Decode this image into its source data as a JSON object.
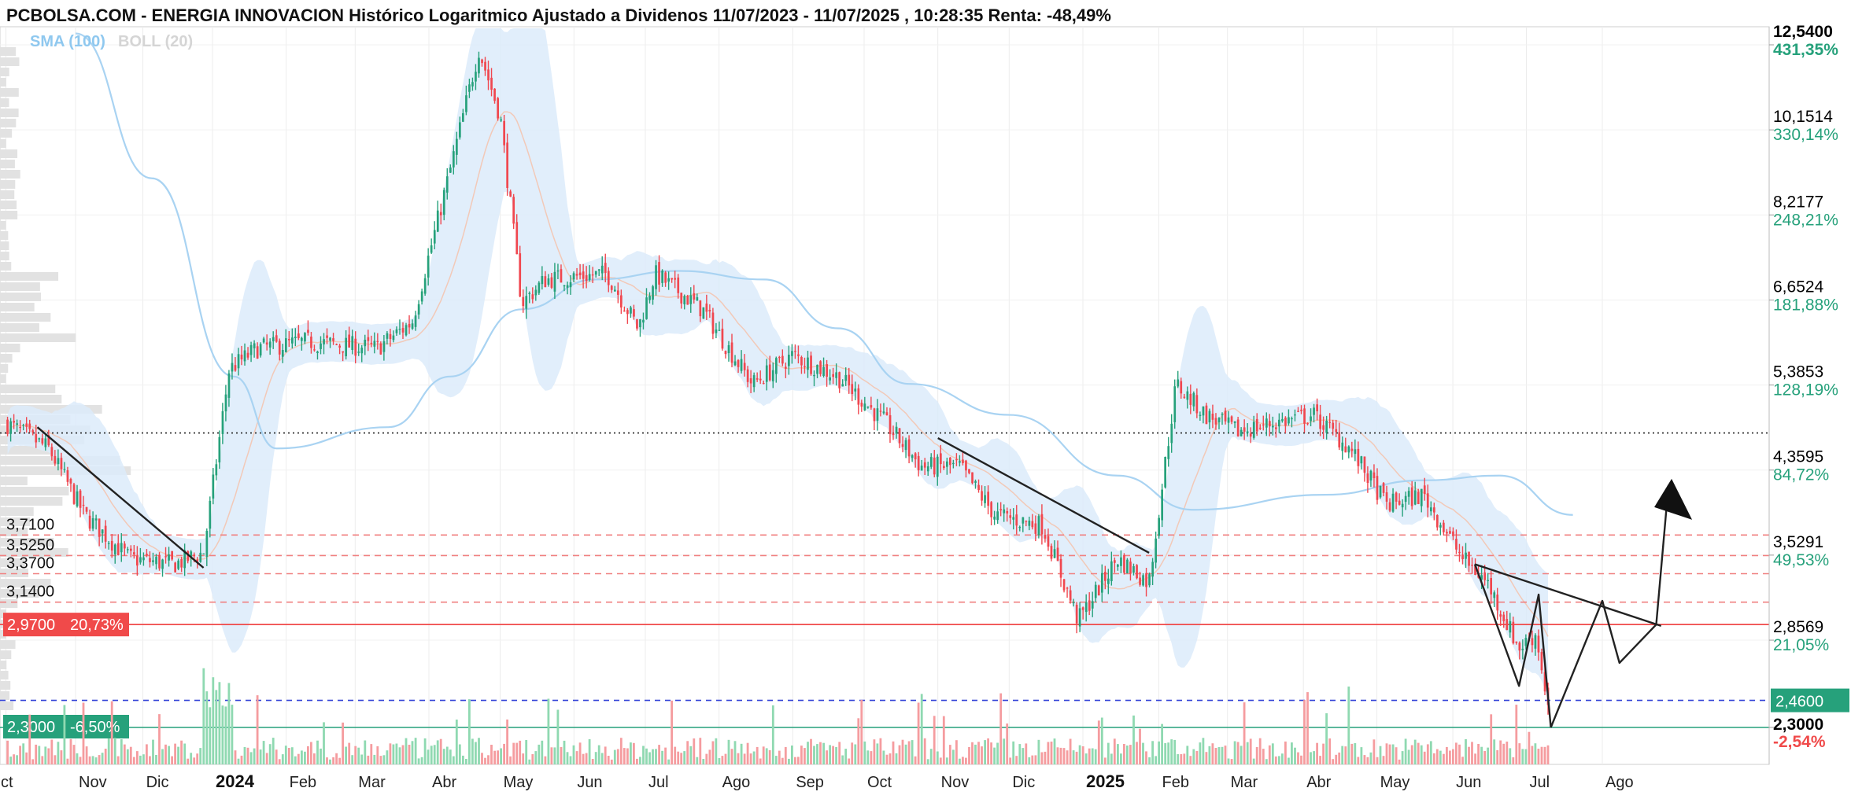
{
  "colors": {
    "up": "#26a17b",
    "down": "#f0474f",
    "volume_up": "#8fd9b1",
    "volume_down": "#f59c9f",
    "bollinger_fill": "#dcebfa",
    "sma": "#a9d3f2",
    "boll_mid": "#f2c9b8",
    "level_dash": "#f08080",
    "support": "#f04a4a",
    "blue_dash": "#2f3fd6",
    "green_line": "#26a17b",
    "pattern": "#222222"
  },
  "chart_data": {
    "type": "candlestick",
    "title": "PCBOLSA.COM - ENERGIA INNOVACION Histórico Logaritmico Ajustado a Dividenos 11/07/2023 - 11/07/2025 , 10:28:35 Renta: -48,49%",
    "legend": [
      {
        "label": "SMA (100)",
        "color": "#7ec0ee"
      },
      {
        "label": "BOLL (20)",
        "color": "#d7d7d7"
      }
    ],
    "y_scale": "log",
    "ylim": [
      2.2,
      12.9
    ],
    "y_ticks": [
      {
        "price": "12,5400",
        "pct": "431,35%",
        "value": 12.54
      },
      {
        "price": "10,1514",
        "pct": "330,14%",
        "value": 10.1514
      },
      {
        "price": "8,2177",
        "pct": "248,21%",
        "value": 8.2177
      },
      {
        "price": "6,6524",
        "pct": "181,88%",
        "value": 6.6524
      },
      {
        "price": "5,3853",
        "pct": "128,19%",
        "value": 5.3853
      },
      {
        "price": "4,3595",
        "pct": "84,72%",
        "value": 4.3595
      },
      {
        "price": "3,5291",
        "pct": "49,53%",
        "value": 3.5291
      },
      {
        "price": "2,8569",
        "pct": "21,05%",
        "value": 2.8569
      },
      {
        "price": "2,3000",
        "pct": "-2,54%",
        "value": 2.3
      }
    ],
    "x_labels": [
      {
        "label": "ct",
        "date": "2023-10-01"
      },
      {
        "label": "Nov",
        "date": "2023-11-01"
      },
      {
        "label": "Dic",
        "date": "2023-12-01"
      },
      {
        "label": "2024",
        "date": "2024-01-01",
        "bold": true
      },
      {
        "label": "Feb",
        "date": "2024-02-01"
      },
      {
        "label": "Mar",
        "date": "2024-03-01"
      },
      {
        "label": "Abr",
        "date": "2024-04-01"
      },
      {
        "label": "May",
        "date": "2024-05-01"
      },
      {
        "label": "Jun",
        "date": "2024-06-01"
      },
      {
        "label": "Jul",
        "date": "2024-07-01"
      },
      {
        "label": "Ago",
        "date": "2024-08-01"
      },
      {
        "label": "Sep",
        "date": "2024-09-01"
      },
      {
        "label": "Oct",
        "date": "2024-10-01"
      },
      {
        "label": "Nov",
        "date": "2024-11-01"
      },
      {
        "label": "Dic",
        "date": "2024-12-01"
      },
      {
        "label": "2025",
        "date": "2025-01-01",
        "bold": true
      },
      {
        "label": "Feb",
        "date": "2025-02-01"
      },
      {
        "label": "Mar",
        "date": "2025-03-01"
      },
      {
        "label": "Abr",
        "date": "2025-04-01"
      },
      {
        "label": "May",
        "date": "2025-05-01"
      },
      {
        "label": "Jun",
        "date": "2025-06-01"
      },
      {
        "label": "Jul",
        "date": "2025-07-01"
      },
      {
        "label": "Ago",
        "date": "2025-08-01"
      }
    ],
    "price_path": [
      {
        "date": "2023-10-01",
        "value": 4.9
      },
      {
        "date": "2023-10-20",
        "value": 4.6
      },
      {
        "date": "2023-11-05",
        "value": 3.9
      },
      {
        "date": "2023-11-25",
        "value": 3.5
      },
      {
        "date": "2023-12-15",
        "value": 3.45
      },
      {
        "date": "2023-12-28",
        "value": 3.55
      },
      {
        "date": "2024-01-08",
        "value": 5.6
      },
      {
        "date": "2024-01-20",
        "value": 5.9
      },
      {
        "date": "2024-02-10",
        "value": 6.0
      },
      {
        "date": "2024-03-10",
        "value": 5.9
      },
      {
        "date": "2024-03-25",
        "value": 6.3
      },
      {
        "date": "2024-04-10",
        "value": 9.2
      },
      {
        "date": "2024-04-22",
        "value": 12.4
      },
      {
        "date": "2024-05-01",
        "value": 10.5
      },
      {
        "date": "2024-05-10",
        "value": 6.6
      },
      {
        "date": "2024-05-20",
        "value": 7.0
      },
      {
        "date": "2024-06-15",
        "value": 7.1
      },
      {
        "date": "2024-06-28",
        "value": 6.2
      },
      {
        "date": "2024-07-05",
        "value": 7.1
      },
      {
        "date": "2024-07-25",
        "value": 6.5
      },
      {
        "date": "2024-08-15",
        "value": 5.4
      },
      {
        "date": "2024-09-01",
        "value": 5.8
      },
      {
        "date": "2024-09-20",
        "value": 5.5
      },
      {
        "date": "2024-10-10",
        "value": 4.9
      },
      {
        "date": "2024-10-25",
        "value": 4.4
      },
      {
        "date": "2024-11-10",
        "value": 4.4
      },
      {
        "date": "2024-11-25",
        "value": 3.9
      },
      {
        "date": "2024-12-15",
        "value": 3.8
      },
      {
        "date": "2024-12-30",
        "value": 3.0
      },
      {
        "date": "2025-01-15",
        "value": 3.5
      },
      {
        "date": "2025-01-28",
        "value": 3.3
      },
      {
        "date": "2025-02-08",
        "value": 5.4
      },
      {
        "date": "2025-02-20",
        "value": 5.0
      },
      {
        "date": "2025-03-05",
        "value": 4.8
      },
      {
        "date": "2025-03-20",
        "value": 4.9
      },
      {
        "date": "2025-04-05",
        "value": 5.0
      },
      {
        "date": "2025-04-20",
        "value": 4.6
      },
      {
        "date": "2025-05-05",
        "value": 4.0
      },
      {
        "date": "2025-05-20",
        "value": 4.1
      },
      {
        "date": "2025-06-05",
        "value": 3.5
      },
      {
        "date": "2025-06-15",
        "value": 3.3
      },
      {
        "date": "2025-06-28",
        "value": 2.8
      },
      {
        "date": "2025-07-05",
        "value": 2.9
      },
      {
        "date": "2025-07-11",
        "value": 2.32
      }
    ],
    "sma_100": [
      {
        "date": "2023-11-01",
        "value": 12.9
      },
      {
        "date": "2023-12-05",
        "value": 9.0
      },
      {
        "date": "2024-01-10",
        "value": 5.5
      },
      {
        "date": "2024-01-28",
        "value": 4.6
      },
      {
        "date": "2024-03-15",
        "value": 4.85
      },
      {
        "date": "2024-04-10",
        "value": 5.5
      },
      {
        "date": "2024-05-10",
        "value": 6.5
      },
      {
        "date": "2024-06-10",
        "value": 7.0
      },
      {
        "date": "2024-07-15",
        "value": 7.15
      },
      {
        "date": "2024-08-20",
        "value": 7.0
      },
      {
        "date": "2024-09-20",
        "value": 6.2
      },
      {
        "date": "2024-10-20",
        "value": 5.4
      },
      {
        "date": "2024-12-01",
        "value": 5.0
      },
      {
        "date": "2025-01-15",
        "value": 4.3
      },
      {
        "date": "2025-02-15",
        "value": 3.95
      },
      {
        "date": "2025-04-10",
        "value": 4.1
      },
      {
        "date": "2025-05-20",
        "value": 4.25
      },
      {
        "date": "2025-06-20",
        "value": 4.3
      },
      {
        "date": "2025-07-20",
        "value": 3.9
      }
    ],
    "levels": [
      {
        "label": "3,7100",
        "value": 3.71,
        "style": "dashed"
      },
      {
        "label": "3,5250",
        "value": 3.525,
        "style": "dashed"
      },
      {
        "label": "3,3700",
        "value": 3.37,
        "style": "dashed"
      },
      {
        "label": "3,1400",
        "value": 3.14,
        "style": "dashed"
      }
    ],
    "resistance_dotted": 4.78,
    "support_tag": {
      "price": "2,9700",
      "pct": "20,73%",
      "value": 2.97
    },
    "green_tag": {
      "price": "2,3000",
      "pct": "-6,50%",
      "value": 2.3
    },
    "right_green_tag": {
      "price": "2,4600",
      "value": 2.46
    },
    "annotations": [
      {
        "name": "downtrend-2023",
        "points": [
          {
            "date": "2023-10-15",
            "value": 4.85
          },
          {
            "date": "2023-12-28",
            "value": 3.42
          }
        ]
      },
      {
        "name": "downtrend-2024",
        "points": [
          {
            "date": "2024-11-01",
            "value": 4.72
          },
          {
            "date": "2025-01-28",
            "value": 3.55
          }
        ]
      },
      {
        "name": "wedge-top",
        "points": [
          {
            "date": "2025-06-10",
            "value": 3.45
          },
          {
            "date": "2025-08-25",
            "value": 2.96
          }
        ]
      },
      {
        "name": "wedge-bottom",
        "points": [
          {
            "date": "2025-06-10",
            "value": 3.45
          },
          {
            "date": "2025-06-28",
            "value": 2.55
          },
          {
            "date": "2025-07-06",
            "value": 3.2
          },
          {
            "date": "2025-07-11",
            "value": 2.3
          }
        ]
      },
      {
        "name": "projection",
        "points": [
          {
            "date": "2025-07-11",
            "value": 2.3
          },
          {
            "date": "2025-08-01",
            "value": 3.15
          },
          {
            "date": "2025-08-08",
            "value": 2.7
          },
          {
            "date": "2025-08-23",
            "value": 2.97
          },
          {
            "date": "2025-08-28",
            "value": 4.2
          }
        ]
      }
    ],
    "target_arrow": {
      "date": "2025-08-28",
      "value": 4.2
    }
  }
}
